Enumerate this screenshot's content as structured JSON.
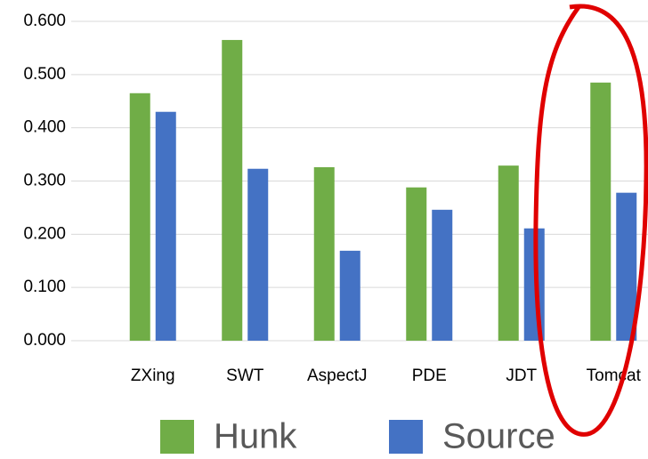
{
  "chart_data": {
    "type": "bar",
    "categories": [
      "ZXing",
      "SWT",
      "AspectJ",
      "PDE",
      "JDT",
      "Tomcat"
    ],
    "series": [
      {
        "name": "Hunk",
        "color": "#70ad47",
        "values": [
          0.465,
          0.565,
          0.326,
          0.288,
          0.329,
          0.485
        ]
      },
      {
        "name": "Source",
        "color": "#4472c4",
        "values": [
          0.43,
          0.323,
          0.169,
          0.246,
          0.211,
          0.278
        ]
      }
    ],
    "ylim": [
      0,
      0.6
    ],
    "yticks": [
      {
        "value": 0,
        "label": "0.000"
      },
      {
        "value": 0.1,
        "label": "0.100"
      },
      {
        "value": 0.2,
        "label": "0.200"
      },
      {
        "value": 0.3,
        "label": "0.300"
      },
      {
        "value": 0.4,
        "label": "0.400"
      },
      {
        "value": 0.5,
        "label": "0.500"
      },
      {
        "value": 0.6,
        "label": "0.600"
      }
    ],
    "grid": true,
    "legend": "bottom"
  }
}
